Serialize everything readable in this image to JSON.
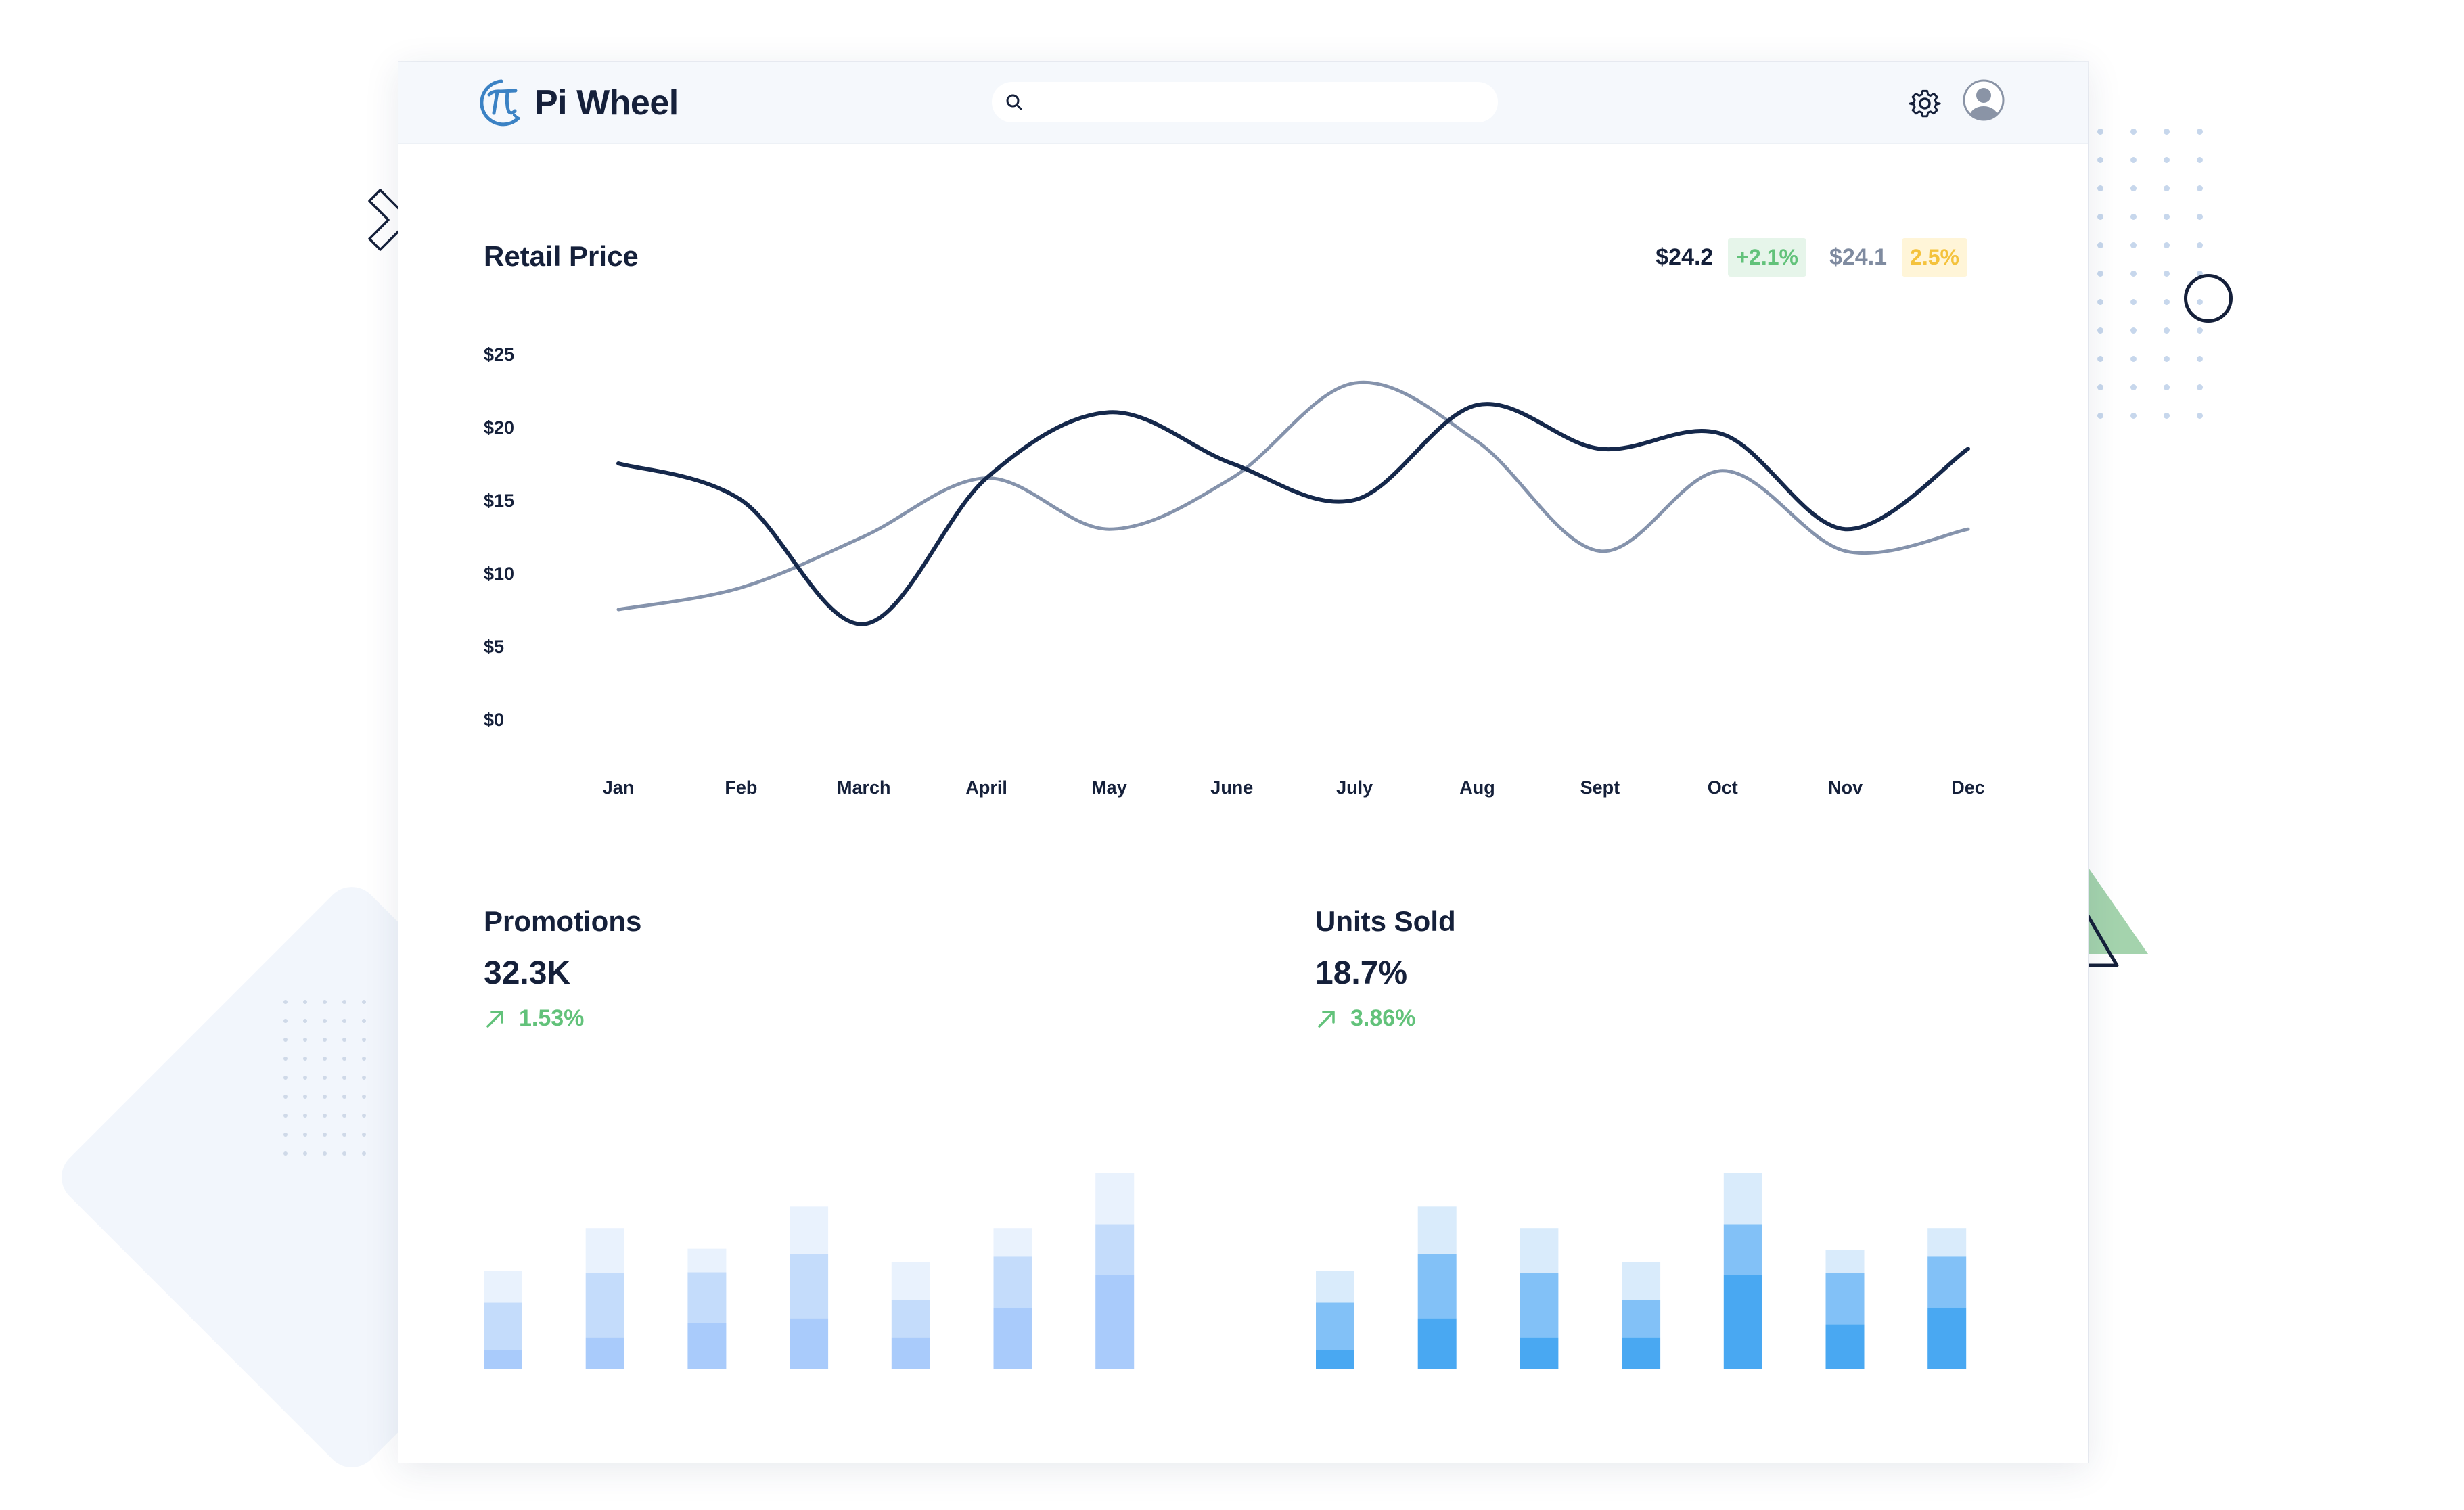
{
  "app": {
    "brand": "Pi Wheel",
    "brand_color": "#3b82c4",
    "text_color": "#15203a"
  },
  "header": {
    "search_placeholder": "",
    "search_value": "",
    "icons": [
      "search-icon",
      "gear-icon",
      "user-avatar-icon"
    ]
  },
  "retail_price": {
    "title": "Retail Price",
    "current_value": "$24.2",
    "current_change": "+2.1%",
    "previous_value": "$24.1",
    "previous_change": "2.5%",
    "colors": {
      "current": "#15284b",
      "previous": "#8593ac",
      "up": "#62c27a",
      "warn": "#f4c23c"
    }
  },
  "promotions": {
    "title": "Promotions",
    "value": "32.3K",
    "change": "1.53%",
    "trend": "up"
  },
  "units_sold": {
    "title": "Units Sold",
    "value": "18.7%",
    "change": "3.86%",
    "trend": "up"
  },
  "chart_data": [
    {
      "type": "line",
      "title": "Retail Price",
      "x": [
        "Jan",
        "Feb",
        "March",
        "April",
        "May",
        "June",
        "July",
        "Aug",
        "Sept",
        "Oct",
        "Nov",
        "Dec"
      ],
      "y_ticks": [
        "$0",
        "$5",
        "$10",
        "$15",
        "$20",
        "$25"
      ],
      "ylim": [
        0,
        25
      ],
      "grid": false,
      "series": [
        {
          "color": "#15284b",
          "values": [
            17.5,
            15,
            6.5,
            16.5,
            21,
            17.5,
            15,
            21.5,
            18.5,
            19.5,
            13,
            18.5
          ]
        },
        {
          "color": "#8593ac",
          "values": [
            7.5,
            9,
            12.5,
            16.5,
            13,
            16.5,
            23,
            19,
            11.5,
            17,
            11.5,
            13
          ]
        }
      ]
    },
    {
      "type": "bar",
      "stacked": true,
      "title": "Promotions",
      "colors": [
        "#a9cbfb",
        "#c4dcfb",
        "#e9f2fd"
      ],
      "series": [
        {
          "values": [
            20,
            32,
            47,
            52,
            32,
            63,
            96
          ]
        },
        {
          "values": [
            48,
            66,
            52,
            66,
            39,
            52,
            52
          ]
        },
        {
          "values": [
            32,
            46,
            24,
            48,
            38,
            29,
            52
          ]
        }
      ]
    },
    {
      "type": "bar",
      "stacked": true,
      "title": "Units Sold",
      "colors": [
        "#49a8f2",
        "#82c1f7",
        "#d9ebfb"
      ],
      "series": [
        {
          "values": [
            20,
            52,
            32,
            32,
            96,
            46,
            63
          ]
        },
        {
          "values": [
            48,
            66,
            66,
            39,
            52,
            52,
            52
          ]
        },
        {
          "values": [
            32,
            48,
            46,
            38,
            52,
            24,
            29
          ]
        }
      ]
    }
  ]
}
